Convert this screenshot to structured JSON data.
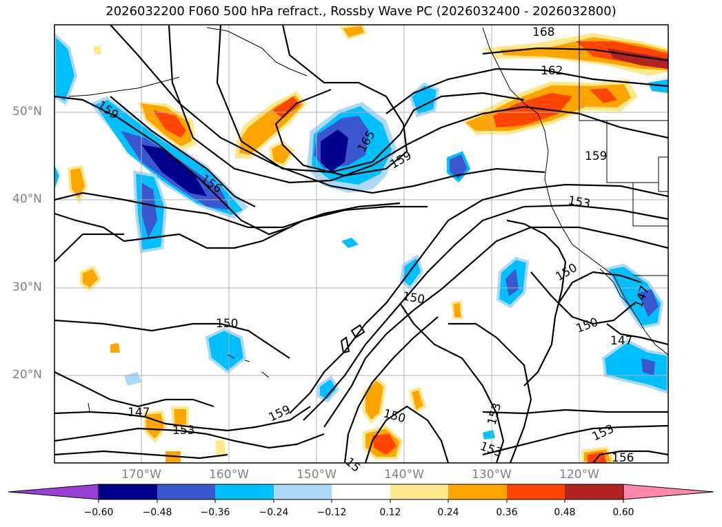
{
  "title": "2026032200 F060 500 hPa refract., Rossby Wave PC (2026032400 - 2026032800)",
  "colors": {
    "neg_060": "#9a3fd6",
    "neg_048": "#00008b",
    "neg_036": "#3a57d0",
    "neg_024": "#00bfff",
    "neg_012": "#add8f7",
    "zero": "#ffffff",
    "pos_012": "#ffe88c",
    "pos_024": "#ffa500",
    "pos_036": "#ff4500",
    "pos_048": "#b22222",
    "pos_060": "#ff88aa"
  },
  "map": {
    "lat_labels": [
      "50°N",
      "40°N",
      "30°N",
      "20°N"
    ],
    "lon_labels": [
      "170°W",
      "160°W",
      "150°W",
      "140°W",
      "130°W",
      "120°W"
    ],
    "contour_labels": [
      "168",
      "162",
      "159",
      "156",
      "159",
      "165",
      "159",
      "159",
      "153",
      "150",
      "150",
      "150",
      "147",
      "150",
      "147",
      "153",
      "153",
      "150",
      "15",
      "153",
      "153",
      "156",
      "147"
    ]
  },
  "colorbar": {
    "ticks": [
      "−0.60",
      "−0.48",
      "−0.36",
      "−0.24",
      "−0.12",
      "0.12",
      "0.24",
      "0.36",
      "0.48",
      "0.60"
    ]
  }
}
